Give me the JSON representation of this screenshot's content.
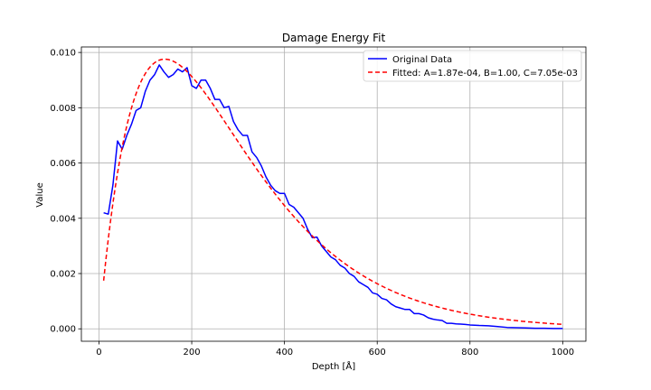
{
  "chart_data": {
    "type": "line",
    "title": "Damage Energy Fit",
    "xlabel": "Depth [Å]",
    "ylabel": "Value",
    "xlim": [
      -38,
      1050
    ],
    "ylim": [
      -0.00045,
      0.0102
    ],
    "x_ticks": [
      0,
      200,
      400,
      600,
      800,
      1000
    ],
    "y_ticks": [
      0.0,
      0.002,
      0.004,
      0.006,
      0.008,
      0.01
    ],
    "x_tick_labels": [
      "0",
      "200",
      "400",
      "600",
      "800",
      "1000"
    ],
    "y_tick_labels": [
      "0.000",
      "0.002",
      "0.004",
      "0.006",
      "0.008",
      "0.010"
    ],
    "grid": true,
    "legend_position": "top-right",
    "series": [
      {
        "name": "Original Data",
        "color": "#0000ff",
        "style": "solid",
        "points": [
          [
            10,
            0.0042
          ],
          [
            20,
            0.00415
          ],
          [
            30,
            0.0052
          ],
          [
            40,
            0.0068
          ],
          [
            50,
            0.0065
          ],
          [
            60,
            0.007
          ],
          [
            70,
            0.0074
          ],
          [
            80,
            0.0079
          ],
          [
            90,
            0.008
          ],
          [
            100,
            0.0086
          ],
          [
            110,
            0.009
          ],
          [
            120,
            0.0092
          ],
          [
            130,
            0.00955
          ],
          [
            140,
            0.0093
          ],
          [
            150,
            0.0091
          ],
          [
            160,
            0.0092
          ],
          [
            170,
            0.0094
          ],
          [
            180,
            0.0093
          ],
          [
            190,
            0.00945
          ],
          [
            200,
            0.0088
          ],
          [
            210,
            0.0087
          ],
          [
            220,
            0.009
          ],
          [
            230,
            0.009
          ],
          [
            240,
            0.0087
          ],
          [
            250,
            0.0083
          ],
          [
            260,
            0.0083
          ],
          [
            270,
            0.008
          ],
          [
            280,
            0.00805
          ],
          [
            290,
            0.0075
          ],
          [
            300,
            0.0072
          ],
          [
            310,
            0.007
          ],
          [
            320,
            0.007
          ],
          [
            330,
            0.0064
          ],
          [
            340,
            0.0062
          ],
          [
            350,
            0.0059
          ],
          [
            360,
            0.0055
          ],
          [
            370,
            0.0052
          ],
          [
            380,
            0.005
          ],
          [
            390,
            0.0049
          ],
          [
            400,
            0.0049
          ],
          [
            410,
            0.0045
          ],
          [
            420,
            0.0044
          ],
          [
            430,
            0.0042
          ],
          [
            440,
            0.004
          ],
          [
            450,
            0.0036
          ],
          [
            460,
            0.0033
          ],
          [
            470,
            0.00332
          ],
          [
            480,
            0.003
          ],
          [
            490,
            0.0028
          ],
          [
            500,
            0.0026
          ],
          [
            510,
            0.0025
          ],
          [
            520,
            0.0023
          ],
          [
            530,
            0.0022
          ],
          [
            540,
            0.002
          ],
          [
            550,
            0.0019
          ],
          [
            560,
            0.0017
          ],
          [
            570,
            0.0016
          ],
          [
            580,
            0.0015
          ],
          [
            590,
            0.0013
          ],
          [
            600,
            0.00125
          ],
          [
            610,
            0.0011
          ],
          [
            620,
            0.00105
          ],
          [
            630,
            0.0009
          ],
          [
            640,
            0.0008
          ],
          [
            650,
            0.00075
          ],
          [
            660,
            0.0007
          ],
          [
            670,
            0.0007
          ],
          [
            680,
            0.00055
          ],
          [
            690,
            0.00055
          ],
          [
            700,
            0.0005
          ],
          [
            710,
            0.0004
          ],
          [
            720,
            0.00035
          ],
          [
            730,
            0.00032
          ],
          [
            740,
            0.0003
          ],
          [
            750,
            0.0002
          ],
          [
            760,
            0.0002
          ],
          [
            770,
            0.00018
          ],
          [
            780,
            0.00017
          ],
          [
            790,
            0.00016
          ],
          [
            800,
            0.00014
          ],
          [
            820,
            0.00012
          ],
          [
            840,
            0.00011
          ],
          [
            860,
            8e-05
          ],
          [
            880,
            5e-05
          ],
          [
            900,
            4e-05
          ],
          [
            920,
            3e-05
          ],
          [
            940,
            2e-05
          ],
          [
            960,
            2e-05
          ],
          [
            980,
            1e-05
          ],
          [
            1000,
            1e-05
          ]
        ]
      },
      {
        "name": "Fitted: A=1.87e-04, B=1.00, C=7.05e-03",
        "color": "#ff0000",
        "style": "dashed",
        "model": {
          "A": 0.000187,
          "B": 1.0,
          "C": 0.00705
        },
        "x_range": [
          10,
          1000
        ]
      }
    ]
  }
}
